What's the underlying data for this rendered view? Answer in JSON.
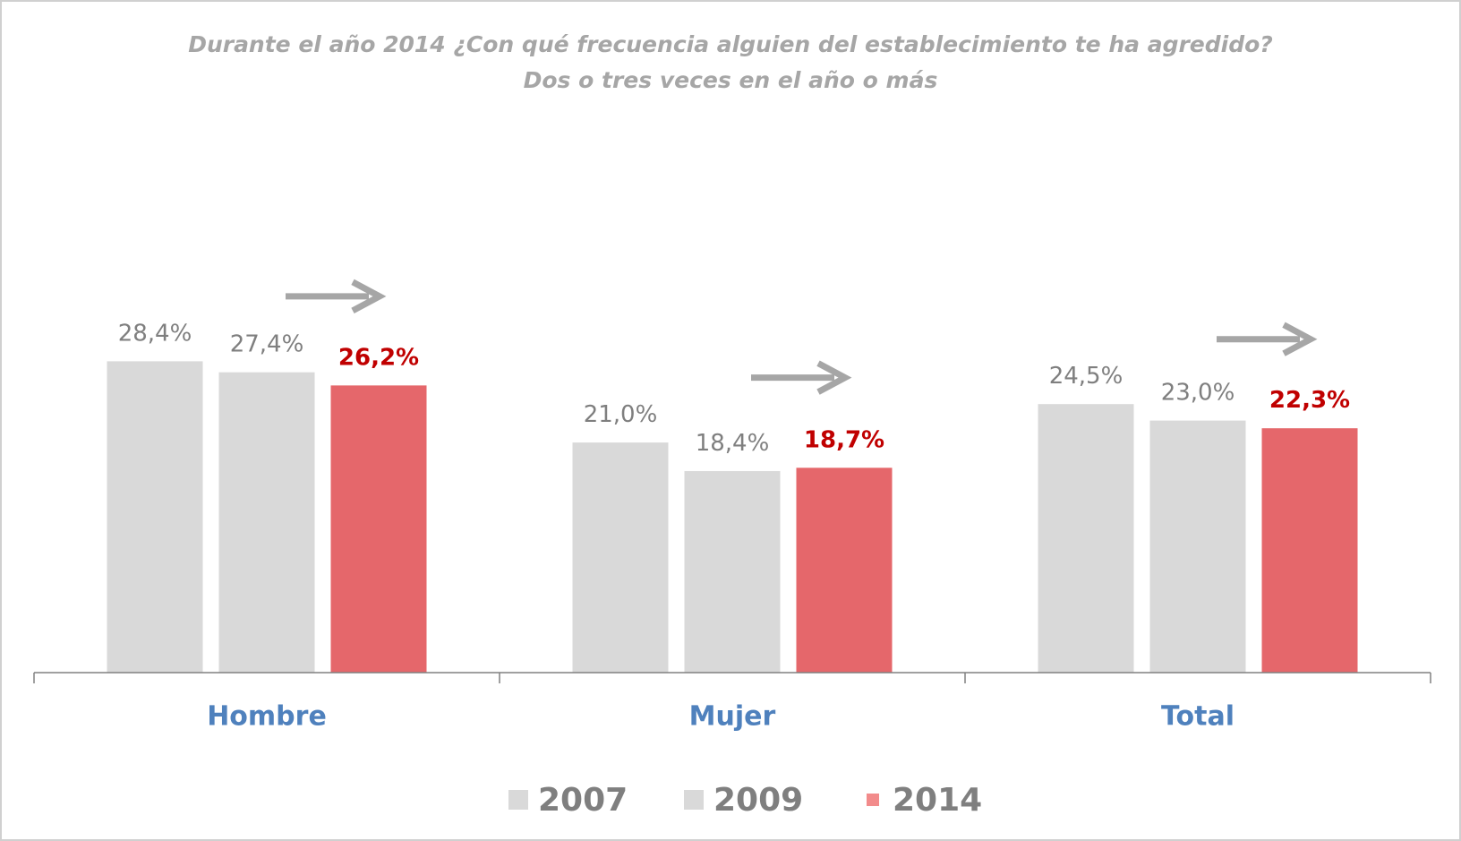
{
  "chart_data": {
    "type": "bar",
    "title": "Durante el año 2014 ¿Con qué frecuencia alguien del establecimiento te ha agredido? Dos o tres veces en el año o más",
    "categories": [
      "Hombre",
      "Mujer",
      "Total"
    ],
    "series": [
      {
        "name": "2007",
        "color": "#d9d9d9",
        "values": [
          28.4,
          21.0,
          24.5
        ],
        "value_labels": [
          "28,4%",
          "21,0%",
          "24,5%"
        ]
      },
      {
        "name": "2009",
        "color": "#d9d9d9",
        "values": [
          27.4,
          18.4,
          23.0
        ],
        "value_labels": [
          "27,4%",
          "18,4%",
          "23,0%"
        ]
      },
      {
        "name": "2014",
        "color": "#e5676b",
        "values": [
          26.2,
          18.7,
          22.3
        ],
        "value_labels": [
          "26,2%",
          "18,7%",
          "22,3%"
        ]
      }
    ],
    "ylim": [
      0,
      35
    ],
    "legend": "bottom"
  }
}
